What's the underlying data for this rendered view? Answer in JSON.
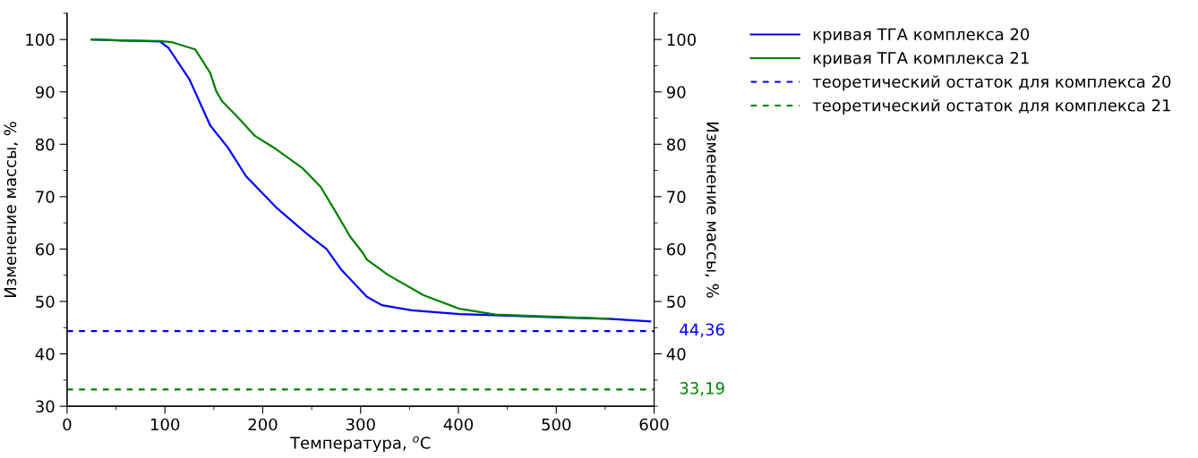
{
  "chart_data": {
    "type": "line",
    "xlabel": "Температура, $^{o}$C",
    "ylabel": "Изменение массы, %",
    "y2label": "Изменение массы, %",
    "xlim": [
      0,
      600
    ],
    "xticks": [
      0,
      100,
      200,
      300,
      400,
      500,
      600
    ],
    "ylim": [
      30,
      105
    ],
    "yticks": [
      30,
      40,
      50,
      60,
      70,
      80,
      90,
      100
    ],
    "y2lim": [
      30,
      105
    ],
    "y2ticks": [
      40,
      50,
      60,
      70,
      80,
      90,
      100
    ],
    "legend": "top right",
    "grid": false,
    "line_style": "solid",
    "series": [
      {
        "name": "кривая ТГА комплекса 20",
        "color": "#0000ff",
        "x": [
          25,
          60,
          95,
          103.6,
          125,
          146.3,
          164.6,
          182.9,
          213.4,
          243.9,
          265.2,
          280.5,
          306.4,
          321.7,
          352,
          401,
          449.7,
          510.7,
          553.4,
          596
        ],
        "values": [
          100.0,
          99.8,
          99.6,
          98.4,
          92.4,
          83.6,
          79.3,
          73.9,
          68.0,
          63.1,
          60.0,
          56.0,
          50.9,
          49.3,
          48.3,
          47.6,
          47.3,
          46.9,
          46.7,
          46.2
        ]
      },
      {
        "name": "кривая ТГА комплекса 21",
        "color": "#008000",
        "x": [
          25,
          60,
          95,
          106.7,
          131,
          146.3,
          152.5,
          158.5,
          173.8,
          192,
          213.4,
          240.8,
          259.1,
          277.4,
          289.6,
          301.8,
          306.4,
          327.7,
          364.3,
          401,
          437.6,
          480,
          553.4
        ],
        "values": [
          100.0,
          99.8,
          99.7,
          99.5,
          98.1,
          93.6,
          90.1,
          88.2,
          85.3,
          81.6,
          79.1,
          75.4,
          71.9,
          66.2,
          62.3,
          59.4,
          58.0,
          55.1,
          51.2,
          48.6,
          47.5,
          47.2,
          46.7
        ]
      },
      {
        "name": "теоретический остаток для комплекса 20",
        "color": "#0000ff",
        "line_style": "dashed",
        "x": [
          0,
          600
        ],
        "values": [
          44.36,
          44.36
        ],
        "value_labels": [
          null,
          "44,36"
        ]
      },
      {
        "name": "теоретический остаток для комплекса 21",
        "color": "#008000",
        "line_style": "dashed",
        "x": [
          0,
          600
        ],
        "values": [
          33.19,
          33.19
        ],
        "value_labels": [
          null,
          "33,19"
        ]
      }
    ]
  }
}
